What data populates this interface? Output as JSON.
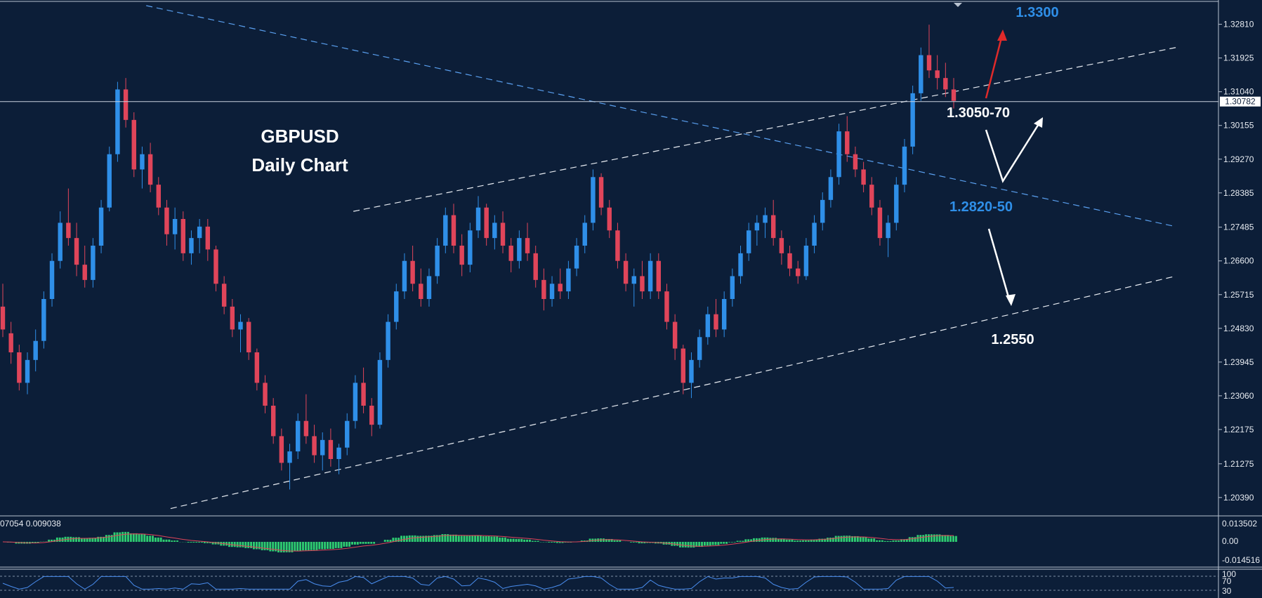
{
  "chart_data": {
    "type": "candlestick",
    "title_line1": "GBPUSD",
    "title_line2": "Daily Chart",
    "price_axis": {
      "ticks": [
        "1.32810",
        "1.31925",
        "1.31040",
        "1.30155",
        "1.29270",
        "1.28385",
        "1.27485",
        "1.26600",
        "1.25715",
        "1.24830",
        "1.23945",
        "1.23060",
        "1.22175",
        "1.21275",
        "1.20390"
      ],
      "range": [
        1.2,
        1.333
      ],
      "current_price": "1.30782"
    },
    "candles": [
      [
        1.254,
        1.26,
        1.246,
        1.248
      ],
      [
        1.247,
        1.25,
        1.239,
        1.242
      ],
      [
        1.242,
        1.244,
        1.232,
        1.234
      ],
      [
        1.234,
        1.242,
        1.231,
        1.24
      ],
      [
        1.24,
        1.248,
        1.237,
        1.245
      ],
      [
        1.245,
        1.258,
        1.243,
        1.256
      ],
      [
        1.256,
        1.268,
        1.254,
        1.266
      ],
      [
        1.266,
        1.279,
        1.264,
        1.276
      ],
      [
        1.276,
        1.285,
        1.27,
        1.272
      ],
      [
        1.272,
        1.276,
        1.262,
        1.265
      ],
      [
        1.265,
        1.27,
        1.259,
        1.261
      ],
      [
        1.261,
        1.272,
        1.259,
        1.27
      ],
      [
        1.27,
        1.282,
        1.268,
        1.28
      ],
      [
        1.28,
        1.296,
        1.279,
        1.294
      ],
      [
        1.294,
        1.313,
        1.292,
        1.311
      ],
      [
        1.311,
        1.314,
        1.301,
        1.303
      ],
      [
        1.303,
        1.305,
        1.288,
        1.29
      ],
      [
        1.29,
        1.296,
        1.285,
        1.294
      ],
      [
        1.294,
        1.297,
        1.284,
        1.286
      ],
      [
        1.286,
        1.288,
        1.278,
        1.28
      ],
      [
        1.28,
        1.282,
        1.27,
        1.273
      ],
      [
        1.273,
        1.28,
        1.269,
        1.277
      ],
      [
        1.277,
        1.279,
        1.266,
        1.268
      ],
      [
        1.268,
        1.274,
        1.265,
        1.272
      ],
      [
        1.272,
        1.277,
        1.268,
        1.275
      ],
      [
        1.275,
        1.277,
        1.266,
        1.269
      ],
      [
        1.269,
        1.27,
        1.258,
        1.26
      ],
      [
        1.26,
        1.262,
        1.252,
        1.254
      ],
      [
        1.254,
        1.256,
        1.246,
        1.248
      ],
      [
        1.248,
        1.252,
        1.242,
        1.25
      ],
      [
        1.25,
        1.251,
        1.24,
        1.242
      ],
      [
        1.242,
        1.243,
        1.232,
        1.234
      ],
      [
        1.234,
        1.236,
        1.226,
        1.228
      ],
      [
        1.228,
        1.23,
        1.218,
        1.22
      ],
      [
        1.22,
        1.222,
        1.211,
        1.213
      ],
      [
        1.213,
        1.218,
        1.206,
        1.216
      ],
      [
        1.216,
        1.226,
        1.214,
        1.224
      ],
      [
        1.224,
        1.231,
        1.218,
        1.22
      ],
      [
        1.22,
        1.223,
        1.213,
        1.215
      ],
      [
        1.215,
        1.221,
        1.211,
        1.219
      ],
      [
        1.219,
        1.222,
        1.212,
        1.214
      ],
      [
        1.214,
        1.218,
        1.21,
        1.217
      ],
      [
        1.217,
        1.226,
        1.215,
        1.224
      ],
      [
        1.224,
        1.236,
        1.222,
        1.234
      ],
      [
        1.234,
        1.238,
        1.226,
        1.228
      ],
      [
        1.228,
        1.23,
        1.22,
        1.223
      ],
      [
        1.223,
        1.242,
        1.222,
        1.24
      ],
      [
        1.24,
        1.252,
        1.238,
        1.25
      ],
      [
        1.25,
        1.26,
        1.248,
        1.258
      ],
      [
        1.258,
        1.268,
        1.256,
        1.266
      ],
      [
        1.266,
        1.27,
        1.258,
        1.26
      ],
      [
        1.26,
        1.264,
        1.254,
        1.256
      ],
      [
        1.256,
        1.264,
        1.254,
        1.262
      ],
      [
        1.262,
        1.272,
        1.26,
        1.27
      ],
      [
        1.27,
        1.28,
        1.268,
        1.278
      ],
      [
        1.278,
        1.281,
        1.268,
        1.27
      ],
      [
        1.27,
        1.273,
        1.262,
        1.265
      ],
      [
        1.265,
        1.276,
        1.263,
        1.274
      ],
      [
        1.274,
        1.283,
        1.272,
        1.28
      ],
      [
        1.28,
        1.281,
        1.27,
        1.272
      ],
      [
        1.272,
        1.278,
        1.269,
        1.276
      ],
      [
        1.276,
        1.279,
        1.268,
        1.27
      ],
      [
        1.27,
        1.272,
        1.263,
        1.266
      ],
      [
        1.266,
        1.274,
        1.264,
        1.272
      ],
      [
        1.272,
        1.276,
        1.266,
        1.268
      ],
      [
        1.268,
        1.27,
        1.259,
        1.261
      ],
      [
        1.261,
        1.264,
        1.253,
        1.256
      ],
      [
        1.256,
        1.262,
        1.254,
        1.26
      ],
      [
        1.26,
        1.264,
        1.256,
        1.258
      ],
      [
        1.258,
        1.266,
        1.256,
        1.264
      ],
      [
        1.264,
        1.272,
        1.262,
        1.27
      ],
      [
        1.27,
        1.278,
        1.268,
        1.276
      ],
      [
        1.276,
        1.29,
        1.274,
        1.288
      ],
      [
        1.288,
        1.289,
        1.278,
        1.28
      ],
      [
        1.28,
        1.282,
        1.272,
        1.274
      ],
      [
        1.274,
        1.276,
        1.264,
        1.266
      ],
      [
        1.266,
        1.268,
        1.258,
        1.26
      ],
      [
        1.26,
        1.264,
        1.254,
        1.262
      ],
      [
        1.262,
        1.266,
        1.256,
        1.258
      ],
      [
        1.258,
        1.268,
        1.256,
        1.266
      ],
      [
        1.266,
        1.268,
        1.256,
        1.258
      ],
      [
        1.258,
        1.26,
        1.248,
        1.25
      ],
      [
        1.25,
        1.252,
        1.24,
        1.243
      ],
      [
        1.243,
        1.244,
        1.231,
        1.234
      ],
      [
        1.234,
        1.242,
        1.23,
        1.24
      ],
      [
        1.24,
        1.248,
        1.238,
        1.246
      ],
      [
        1.246,
        1.254,
        1.244,
        1.252
      ],
      [
        1.252,
        1.256,
        1.246,
        1.248
      ],
      [
        1.248,
        1.258,
        1.246,
        1.256
      ],
      [
        1.256,
        1.264,
        1.254,
        1.262
      ],
      [
        1.262,
        1.27,
        1.26,
        1.268
      ],
      [
        1.268,
        1.276,
        1.266,
        1.274
      ],
      [
        1.274,
        1.278,
        1.27,
        1.276
      ],
      [
        1.276,
        1.28,
        1.272,
        1.278
      ],
      [
        1.278,
        1.282,
        1.27,
        1.272
      ],
      [
        1.272,
        1.274,
        1.265,
        1.268
      ],
      [
        1.268,
        1.27,
        1.262,
        1.264
      ],
      [
        1.264,
        1.266,
        1.26,
        1.262
      ],
      [
        1.262,
        1.272,
        1.261,
        1.27
      ],
      [
        1.27,
        1.278,
        1.268,
        1.276
      ],
      [
        1.276,
        1.284,
        1.274,
        1.282
      ],
      [
        1.282,
        1.29,
        1.28,
        1.288
      ],
      [
        1.288,
        1.302,
        1.286,
        1.3
      ],
      [
        1.3,
        1.304,
        1.292,
        1.294
      ],
      [
        1.294,
        1.296,
        1.288,
        1.29
      ],
      [
        1.29,
        1.292,
        1.284,
        1.286
      ],
      [
        1.286,
        1.288,
        1.278,
        1.28
      ],
      [
        1.28,
        1.282,
        1.27,
        1.272
      ],
      [
        1.272,
        1.278,
        1.267,
        1.276
      ],
      [
        1.276,
        1.288,
        1.274,
        1.286
      ],
      [
        1.286,
        1.298,
        1.284,
        1.296
      ],
      [
        1.296,
        1.312,
        1.294,
        1.31
      ],
      [
        1.31,
        1.322,
        1.308,
        1.32
      ],
      [
        1.32,
        1.328,
        1.314,
        1.316
      ],
      [
        1.316,
        1.32,
        1.311,
        1.314
      ],
      [
        1.314,
        1.318,
        1.309,
        1.311
      ],
      [
        1.311,
        1.314,
        1.306,
        1.308
      ]
    ],
    "trendlines": [
      {
        "style": "dashed",
        "color": "#5aa0f0",
        "from": [
          0.12,
          1.333
        ],
        "to": [
          0.965,
          1.275
        ]
      },
      {
        "style": "dashed",
        "color": "#e8ecf2",
        "from": [
          0.29,
          1.279
        ],
        "to": [
          0.965,
          1.322
        ]
      },
      {
        "style": "dashed",
        "color": "#e8ecf2",
        "from": [
          0.14,
          1.201
        ],
        "to": [
          0.965,
          1.262
        ]
      }
    ],
    "annotations": [
      {
        "text": "1.3300",
        "color": "#2f8fe8"
      },
      {
        "text": "1.3050-70",
        "color": "#ffffff"
      },
      {
        "text": "1.2820-50",
        "color": "#2f8fe8"
      },
      {
        "text": "1.2550",
        "color": "#ffffff"
      }
    ],
    "macd": {
      "label": "07054 0.009038",
      "ticks": [
        "0.013502",
        "0.00",
        "-0.014516"
      ]
    },
    "rsi": {
      "ticks": [
        "100",
        "70",
        "30"
      ]
    },
    "colors": {
      "background": "#0c1e38",
      "bull": "#2f8fe8",
      "bear": "#e0455a",
      "histogram": "#2ecc71",
      "signal": "#e0455a"
    }
  }
}
